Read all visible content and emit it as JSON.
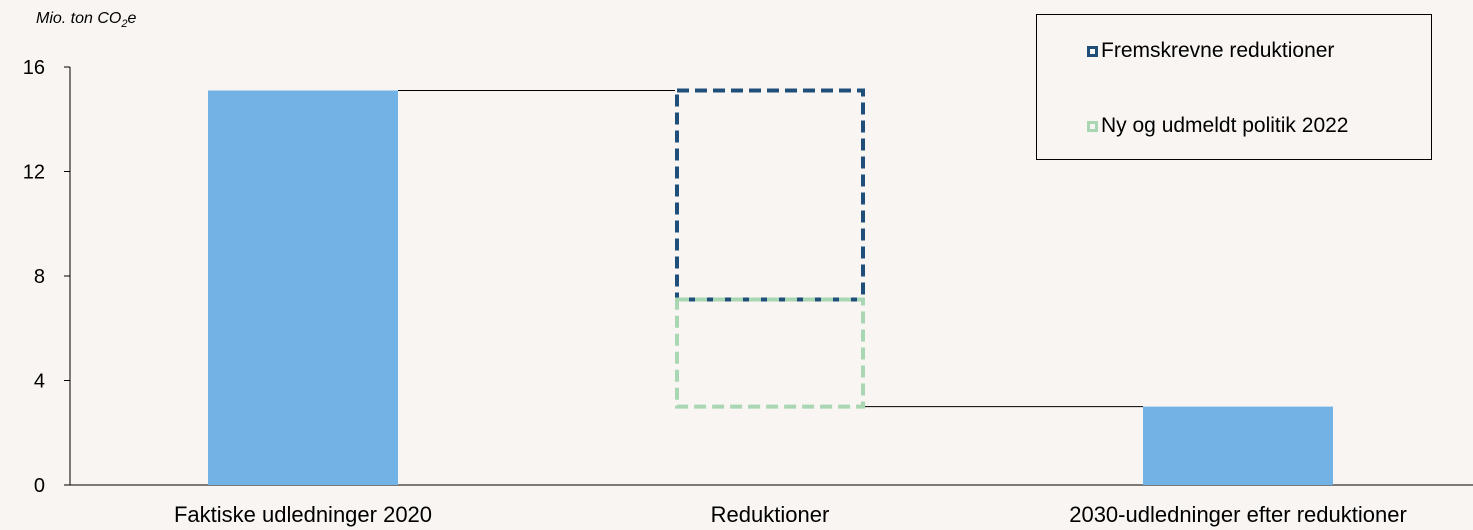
{
  "chart_data": {
    "type": "bar",
    "subtype": "waterfall",
    "unit_label": "Mio. ton CO",
    "unit_sub": "2",
    "unit_suffix": "e",
    "categories": [
      "Faktiske udledninger 2020",
      "Reduktioner",
      "2030-udledninger efter reduktioner"
    ],
    "ylim": [
      0,
      16
    ],
    "yticks": [
      0,
      4,
      8,
      12,
      16
    ],
    "bars": [
      {
        "category": "Faktiske udledninger 2020",
        "base": 0,
        "value": 15.1,
        "style": "solid"
      },
      {
        "category": "Reduktioner",
        "base": 7.1,
        "value": 8.0,
        "style": "dashed",
        "series": "Fremskrevne reduktioner"
      },
      {
        "category": "Reduktioner",
        "base": 3.0,
        "value": 4.1,
        "style": "dashed",
        "series": "Ny og udmeldt politik 2022"
      },
      {
        "category": "2030-udledninger efter reduktioner",
        "base": 0,
        "value": 3.0,
        "style": "solid"
      }
    ],
    "connectors": [
      15.1,
      3.0
    ],
    "series": [
      {
        "name": "Fremskrevne reduktioner",
        "color": "#1f4e79"
      },
      {
        "name": "Ny og udmeldt politik 2022",
        "color": "#a9d7b4"
      }
    ],
    "solid_color": "#72b2e4",
    "legend_position": "top-right",
    "grid": false
  }
}
